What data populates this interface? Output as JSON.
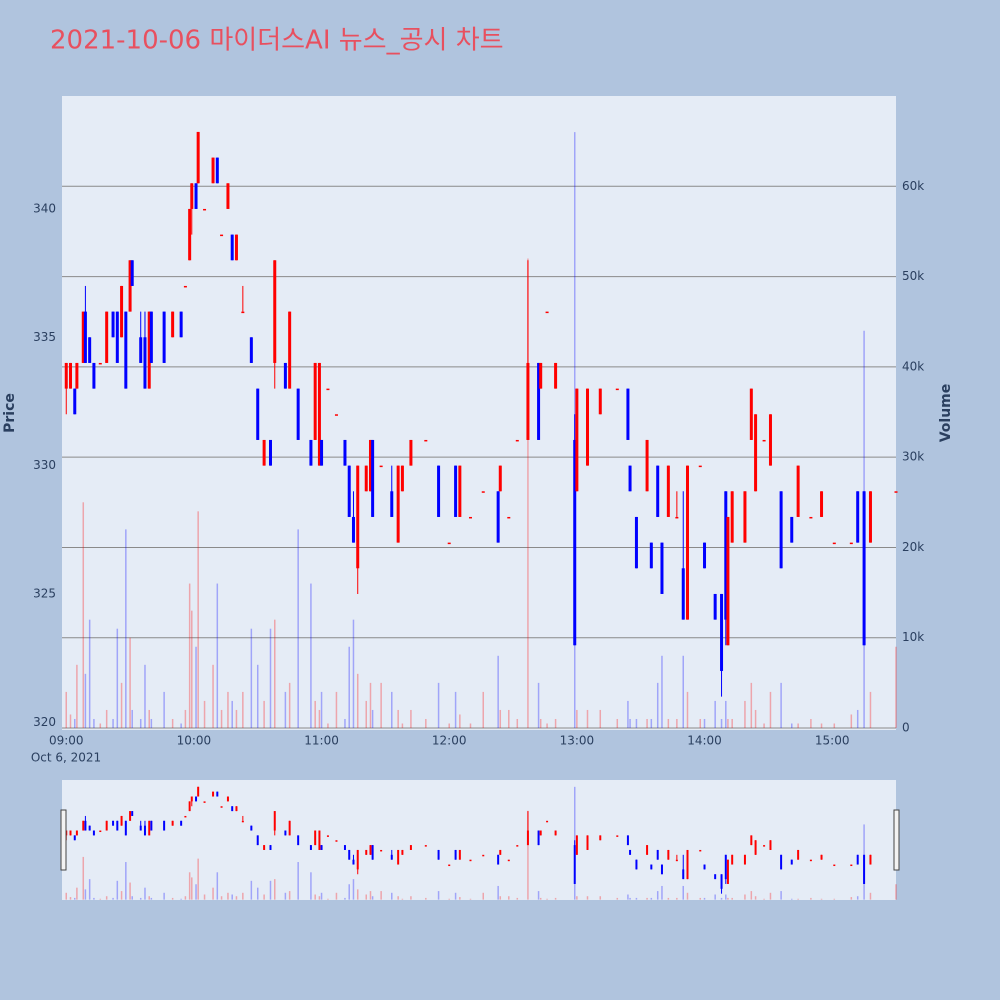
{
  "chart_data": {
    "type": "candlestick",
    "title": "2021-10-06 마이더스AI 뉴스_공시 차트",
    "y_label": "Price",
    "y2_label": "Volume",
    "date_label": "Oct 6, 2021",
    "increasing_color": "#ff0000",
    "decreasing_color": "#0000ff",
    "xlim": [
      "08:58",
      "15:30"
    ],
    "xticks": [
      "09:00",
      "10:00",
      "11:00",
      "12:00",
      "13:00",
      "14:00",
      "15:00"
    ],
    "ylim": [
      319.7,
      344.4
    ],
    "yticks": [
      320,
      325,
      330,
      335,
      340
    ],
    "y2lim": [
      -220,
      70000
    ],
    "y2ticks": [
      0,
      {
        "value": 10000,
        "label": "10k"
      },
      {
        "value": 20000,
        "label": "20k"
      },
      {
        "value": 30000,
        "label": "30k"
      },
      {
        "value": 40000,
        "label": "40k"
      },
      {
        "value": 50000,
        "label": "50k"
      },
      {
        "value": 60000,
        "label": "60k"
      }
    ],
    "grid": true,
    "rangeslider": true,
    "x": [
      "09:00",
      "09:02",
      "09:04",
      "09:05",
      "09:08",
      "09:09",
      "09:11",
      "09:13",
      "09:16",
      "09:19",
      "09:22",
      "09:24",
      "09:26",
      "09:28",
      "09:30",
      "09:31",
      "09:35",
      "09:37",
      "09:39",
      "09:40",
      "09:46",
      "09:50",
      "09:54",
      "09:56",
      "09:58",
      "09:59",
      "10:01",
      "10:02",
      "10:05",
      "10:09",
      "10:11",
      "10:13",
      "10:16",
      "10:18",
      "10:20",
      "10:23",
      "10:27",
      "10:30",
      "10:33",
      "10:36",
      "10:38",
      "10:43",
      "10:45",
      "10:49",
      "10:55",
      "10:57",
      "10:59",
      "11:00",
      "11:03",
      "11:07",
      "11:11",
      "11:13",
      "11:15",
      "11:17",
      "11:21",
      "11:23",
      "11:24",
      "11:28",
      "11:33",
      "11:36",
      "11:38",
      "11:42",
      "11:49",
      "11:55",
      "12:00",
      "12:03",
      "12:05",
      "12:10",
      "12:16",
      "12:23",
      "12:24",
      "12:28",
      "12:32",
      "12:37",
      "12:42",
      "12:43",
      "12:46",
      "12:50",
      "12:59",
      "13:00",
      "13:05",
      "13:11",
      "13:19",
      "13:24",
      "13:25",
      "13:28",
      "13:33",
      "13:35",
      "13:38",
      "13:40",
      "13:43",
      "13:47",
      "13:50",
      "13:52",
      "13:58",
      "14:00",
      "14:05",
      "14:08",
      "14:10",
      "14:11",
      "14:13",
      "14:19",
      "14:22",
      "14:24",
      "14:28",
      "14:31",
      "14:36",
      "14:41",
      "14:44",
      "14:50",
      "14:55",
      "15:01",
      "15:09",
      "15:12",
      "15:15",
      "15:18",
      "15:30"
    ],
    "open": [
      333,
      333,
      333,
      333,
      334,
      336,
      335,
      334,
      334,
      334,
      336,
      336,
      335,
      336,
      336,
      338,
      335,
      335,
      333,
      336,
      336,
      335,
      336,
      337,
      338,
      340,
      341,
      341,
      340,
      341,
      342,
      339,
      340,
      339,
      338,
      336,
      335,
      333,
      330,
      331,
      334,
      334,
      333,
      333,
      331,
      331,
      330,
      331,
      333,
      332,
      331,
      330,
      328,
      326,
      329,
      329,
      331,
      330,
      329,
      327,
      329,
      330,
      331,
      330,
      327,
      330,
      328,
      328,
      329,
      329,
      329,
      328,
      331,
      331,
      334,
      333,
      336,
      333,
      331,
      329,
      330,
      332,
      333,
      333,
      330,
      328,
      329,
      327,
      330,
      327,
      328,
      328,
      326,
      324,
      330,
      327,
      325,
      325,
      329,
      323,
      327,
      327,
      331,
      329,
      331,
      330,
      329,
      328,
      328,
      328,
      328,
      327,
      327,
      329,
      329,
      327,
      329
    ],
    "high": [
      334,
      334,
      333,
      334,
      336,
      337,
      335,
      334,
      334,
      336,
      336,
      336,
      337,
      336,
      338,
      338,
      336,
      336,
      336,
      336,
      336,
      336,
      336,
      337,
      340,
      341,
      341,
      343,
      340,
      342,
      342,
      339,
      341,
      339,
      339,
      337,
      335,
      333,
      331,
      331,
      338,
      334,
      336,
      333,
      331,
      334,
      334,
      331,
      333,
      332,
      331,
      330,
      329,
      330,
      330,
      331,
      331,
      330,
      330,
      330,
      330,
      331,
      331,
      330,
      327,
      330,
      330,
      328,
      329,
      329,
      330,
      328,
      331,
      338,
      334,
      334,
      336,
      334,
      332,
      333,
      333,
      333,
      333,
      333,
      330,
      328,
      331,
      327,
      330,
      327,
      330,
      329,
      329,
      330,
      330,
      327,
      325,
      325,
      329,
      328,
      329,
      329,
      333,
      332,
      331,
      332,
      329,
      328,
      330,
      328,
      329,
      327,
      327,
      329,
      329,
      329,
      329
    ],
    "low": [
      332,
      333,
      332,
      333,
      334,
      334,
      334,
      333,
      334,
      334,
      335,
      334,
      335,
      333,
      336,
      337,
      334,
      333,
      333,
      334,
      334,
      335,
      335,
      337,
      338,
      339,
      340,
      341,
      340,
      341,
      341,
      339,
      340,
      338,
      338,
      336,
      334,
      331,
      330,
      330,
      333,
      333,
      333,
      331,
      330,
      331,
      330,
      330,
      333,
      332,
      330,
      328,
      327,
      325,
      329,
      329,
      328,
      330,
      328,
      327,
      329,
      330,
      331,
      328,
      327,
      328,
      328,
      328,
      329,
      327,
      329,
      328,
      331,
      331,
      331,
      333,
      336,
      333,
      323,
      329,
      330,
      332,
      333,
      331,
      329,
      326,
      329,
      326,
      328,
      325,
      328,
      328,
      324,
      324,
      330,
      326,
      324,
      321,
      323,
      323,
      327,
      327,
      331,
      329,
      331,
      330,
      326,
      327,
      328,
      328,
      328,
      327,
      327,
      327,
      323,
      327,
      329
    ],
    "close": [
      334,
      334,
      332,
      334,
      336,
      334,
      334,
      333,
      334,
      336,
      335,
      334,
      337,
      333,
      338,
      337,
      334,
      333,
      336,
      334,
      334,
      336,
      335,
      337,
      340,
      341,
      340,
      343,
      340,
      342,
      341,
      339,
      341,
      338,
      339,
      336,
      334,
      331,
      331,
      330,
      338,
      333,
      336,
      331,
      330,
      334,
      334,
      330,
      333,
      332,
      330,
      328,
      327,
      330,
      330,
      331,
      328,
      330,
      328,
      330,
      330,
      331,
      331,
      328,
      327,
      328,
      330,
      328,
      329,
      327,
      330,
      328,
      331,
      334,
      331,
      334,
      336,
      334,
      323,
      333,
      333,
      333,
      333,
      331,
      329,
      326,
      331,
      326,
      328,
      325,
      330,
      328,
      324,
      330,
      330,
      326,
      324,
      322,
      324,
      328,
      329,
      329,
      333,
      332,
      331,
      332,
      326,
      327,
      330,
      328,
      329,
      327,
      327,
      327,
      323,
      329,
      329
    ],
    "volume": [
      4000,
      1500,
      1000,
      7000,
      25000,
      6000,
      12000,
      1000,
      500,
      2000,
      1000,
      11000,
      5000,
      22000,
      10000,
      2000,
      1000,
      7000,
      2000,
      1000,
      4000,
      1000,
      500,
      2000,
      16000,
      13000,
      9000,
      24000,
      3000,
      7000,
      16000,
      2000,
      4000,
      3000,
      2000,
      4000,
      11000,
      7000,
      3000,
      11000,
      12000,
      4000,
      5000,
      22000,
      16000,
      3000,
      2000,
      4000,
      500,
      4000,
      1000,
      9000,
      12000,
      6000,
      3000,
      5000,
      2000,
      5000,
      4000,
      2000,
      500,
      2000,
      1000,
      5000,
      500,
      4000,
      1500,
      500,
      4000,
      8000,
      2000,
      2000,
      1000,
      52000,
      5000,
      1000,
      500,
      1000,
      66000,
      2000,
      2000,
      2000,
      1000,
      3000,
      1000,
      1000,
      1000,
      1000,
      5000,
      8000,
      1000,
      1000,
      8000,
      4000,
      1000,
      1000,
      3000,
      1000,
      3000,
      1000,
      1000,
      3000,
      5000,
      2000,
      500,
      4000,
      5000,
      500,
      500,
      1000,
      500,
      500,
      1500,
      2000,
      44000,
      4000,
      9000
    ]
  }
}
